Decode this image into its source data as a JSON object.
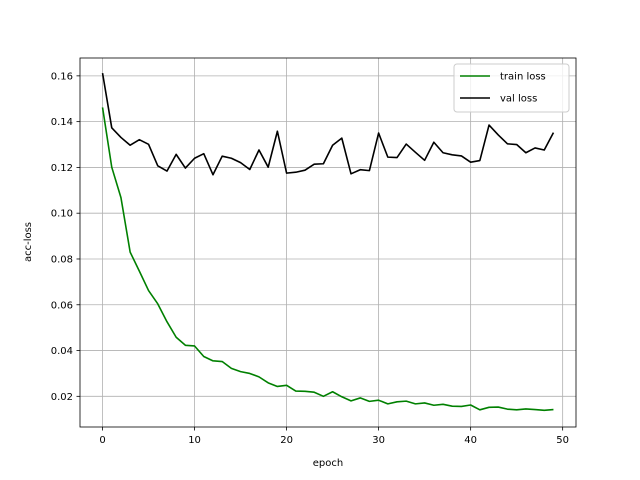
{
  "chart_data": {
    "type": "line",
    "title": "",
    "xlabel": "epoch",
    "ylabel": "acc-loss",
    "xlim": [
      -2.45,
      51.45
    ],
    "ylim": [
      0.0066,
      0.1678
    ],
    "xticks": [
      0,
      10,
      20,
      30,
      40,
      50
    ],
    "yticks": [
      0.02,
      0.04,
      0.06,
      0.08,
      0.1,
      0.12,
      0.14,
      0.16
    ],
    "xtick_labels": [
      "0",
      "10",
      "20",
      "30",
      "40",
      "50"
    ],
    "ytick_labels": [
      "0.02",
      "0.04",
      "0.06",
      "0.08",
      "0.10",
      "0.12",
      "0.14",
      "0.16"
    ],
    "grid": true,
    "legend_position": "top-right",
    "x": [
      0,
      1,
      2,
      3,
      4,
      5,
      6,
      7,
      8,
      9,
      10,
      11,
      12,
      13,
      14,
      15,
      16,
      17,
      18,
      19,
      20,
      21,
      22,
      23,
      24,
      25,
      26,
      27,
      28,
      29,
      30,
      31,
      32,
      33,
      34,
      35,
      36,
      37,
      38,
      39,
      40,
      41,
      42,
      43,
      44,
      45,
      46,
      47,
      48,
      49
    ],
    "series": [
      {
        "name": "train loss",
        "color": "#008000",
        "values": [
          0.1462,
          0.1201,
          0.1068,
          0.083,
          0.0747,
          0.0662,
          0.0604,
          0.0526,
          0.0458,
          0.0423,
          0.042,
          0.0374,
          0.0355,
          0.0352,
          0.0322,
          0.0308,
          0.03,
          0.0285,
          0.0259,
          0.0243,
          0.0248,
          0.0223,
          0.0222,
          0.0218,
          0.02,
          0.022,
          0.0198,
          0.018,
          0.0193,
          0.0178,
          0.0183,
          0.0167,
          0.0176,
          0.0179,
          0.0167,
          0.0171,
          0.0161,
          0.0165,
          0.0157,
          0.0156,
          0.0162,
          0.0141,
          0.0152,
          0.0153,
          0.0144,
          0.0141,
          0.0145,
          0.0142,
          0.0139,
          0.0142
        ]
      },
      {
        "name": "val loss",
        "color": "#000000",
        "values": [
          0.1612,
          0.1373,
          0.1331,
          0.1297,
          0.1321,
          0.1301,
          0.1207,
          0.1184,
          0.1257,
          0.1197,
          0.124,
          0.126,
          0.1168,
          0.1249,
          0.124,
          0.1221,
          0.1191,
          0.1276,
          0.1201,
          0.1358,
          0.1175,
          0.1179,
          0.1188,
          0.1214,
          0.1216,
          0.1297,
          0.1328,
          0.1172,
          0.119,
          0.1186,
          0.135,
          0.1245,
          0.1243,
          0.1302,
          0.1266,
          0.1231,
          0.131,
          0.1264,
          0.1255,
          0.125,
          0.1223,
          0.123,
          0.1385,
          0.1342,
          0.1303,
          0.13,
          0.1264,
          0.1285,
          0.1276,
          0.1352
        ]
      }
    ]
  }
}
